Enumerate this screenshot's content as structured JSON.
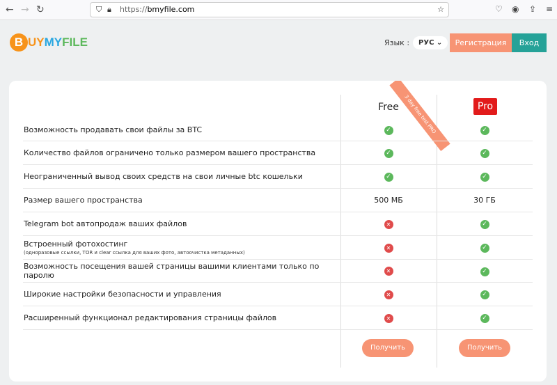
{
  "browser": {
    "url_scheme": "https://",
    "url_host": "bmyfile.com"
  },
  "header": {
    "logo_b": "B",
    "logo_uy": "UY",
    "logo_my": "MY",
    "logo_file": "FILE",
    "lang_label": "Язык :",
    "lang_value": "РУС",
    "register": "Регистрация",
    "login": "Вход"
  },
  "plans": {
    "free": "Free",
    "pro": "Pro",
    "ribbon": "3 day free test PRO",
    "get": "Получить"
  },
  "rows": [
    {
      "label": "Возможность продавать свои файлы за BTC",
      "free": "ok",
      "pro": "ok"
    },
    {
      "label": "Количество файлов ограничено только размером вашего пространства",
      "free": "ok",
      "pro": "ok"
    },
    {
      "label": "Неограниченный вывод своих средств на свои личные btc кошельки",
      "free": "ok",
      "pro": "ok"
    },
    {
      "label": "Размер вашего пространства",
      "free": "500 МБ",
      "pro": "30 ГБ"
    },
    {
      "label": "Telegram bot автопродаж ваших файлов",
      "free": "no",
      "pro": "ok"
    },
    {
      "label": "Встроенный фотохостинг",
      "sub": "(одноразовые ссылки, TOR и clear ссылка для ваших фото, автоочистка метаданных)",
      "free": "no",
      "pro": "ok"
    },
    {
      "label": "Возможность посещения вашей страницы вашими клиентами только по паролю",
      "free": "no",
      "pro": "ok"
    },
    {
      "label": "Широкие настройки безопасности и управления",
      "free": "no",
      "pro": "ok"
    },
    {
      "label": "Расширенный функционал редактирования страницы файлов",
      "free": "no",
      "pro": "ok"
    }
  ],
  "colors": {
    "accent": "#f79474",
    "teal": "#25a298",
    "pro": "#e21b1b",
    "ok": "#5cb85c",
    "no": "#e04b4b"
  }
}
